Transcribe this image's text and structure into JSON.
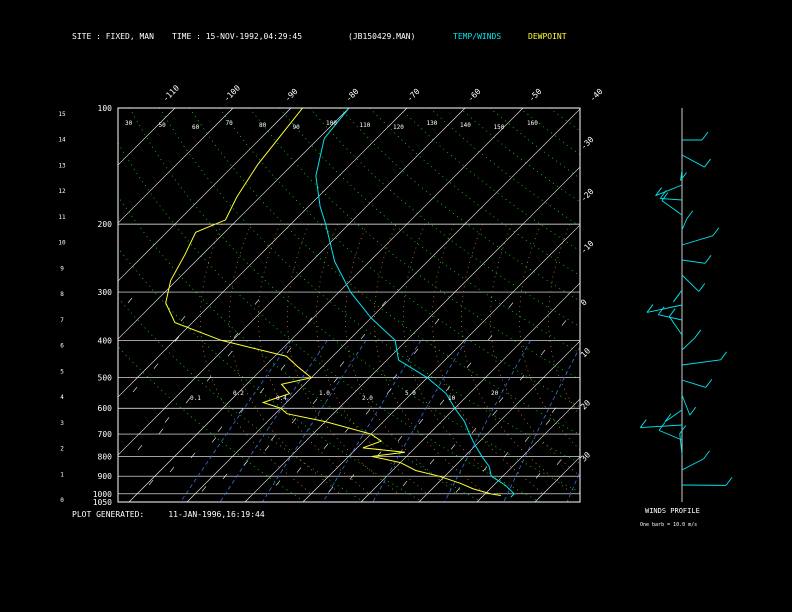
{
  "header": {
    "site_label": "SITE :",
    "site_value": "FIXED, MAN",
    "time_label": "TIME :",
    "time_value": "15-NOV-1992,04:29:45",
    "file": "(JB150429.MAN)",
    "legend_temp": "TEMP/WINDS",
    "legend_dew": "DEWPOINT"
  },
  "footer": {
    "generated_label": "PLOT GENERATED:",
    "generated_value": "11-JAN-1996,16:19:44",
    "winds_title": "WINDS PROFILE",
    "winds_note": "One barb = 10.0 m/s"
  },
  "colors": {
    "background": "#000000",
    "temp": "#00e5ee",
    "dewpoint": "#ffff33",
    "isotherm": "#ffffff",
    "isobar": "#ffffff",
    "dry_adiabat": "#00ff00",
    "moist_adiabat": "#d98c3a",
    "mixing_ratio": "#3a6ed9"
  },
  "chart_data": {
    "type": "line",
    "title": "",
    "pressure_ticks": [
      "100",
      "200",
      "300",
      "400",
      "500",
      "600",
      "700",
      "800",
      "900",
      "1000",
      "1050"
    ],
    "height_ticks": [
      "15",
      "14",
      "13",
      "12",
      "11",
      "10",
      "9",
      "8",
      "7",
      "6",
      "5",
      "4",
      "3",
      "2",
      "1",
      "0"
    ],
    "top_temp_ticks": [
      "-110",
      "-100",
      "-90",
      "-80",
      "-70",
      "-60",
      "-50",
      "-40"
    ],
    "right_temp_ticks": [
      "-30",
      "-20",
      "-10",
      "0",
      "10",
      "20",
      "30"
    ],
    "theta_labels": [
      "30",
      "50",
      "60",
      "70",
      "80",
      "90",
      "100",
      "110",
      "120",
      "130",
      "140",
      "150",
      "160"
    ],
    "mixing_labels": [
      "0.1",
      "0.2",
      "0.4",
      "1.0",
      "2.0",
      "5.0",
      "10",
      "20"
    ],
    "series": [
      {
        "name": "TEMP/WINDS",
        "points": [
          [
            100,
            -80
          ],
          [
            120,
            -79
          ],
          [
            150,
            -74
          ],
          [
            180,
            -68
          ],
          [
            200,
            -64
          ],
          [
            250,
            -56
          ],
          [
            300,
            -48
          ],
          [
            350,
            -40
          ],
          [
            400,
            -32
          ],
          [
            450,
            -28
          ],
          [
            500,
            -20
          ],
          [
            550,
            -14
          ],
          [
            600,
            -10
          ],
          [
            650,
            -6
          ],
          [
            700,
            -3
          ],
          [
            750,
            0
          ],
          [
            800,
            3
          ],
          [
            850,
            6
          ],
          [
            900,
            8
          ],
          [
            950,
            12
          ],
          [
            1000,
            15
          ],
          [
            1020,
            15
          ]
        ]
      },
      {
        "name": "DEWPOINT",
        "points": [
          [
            100,
            -88
          ],
          [
            140,
            -86
          ],
          [
            170,
            -84
          ],
          [
            195,
            -82
          ],
          [
            210,
            -85
          ],
          [
            240,
            -83
          ],
          [
            280,
            -81
          ],
          [
            320,
            -78
          ],
          [
            360,
            -73
          ],
          [
            400,
            -62
          ],
          [
            440,
            -48
          ],
          [
            470,
            -44
          ],
          [
            500,
            -40
          ],
          [
            520,
            -44
          ],
          [
            550,
            -41
          ],
          [
            580,
            -44
          ],
          [
            600,
            -40
          ],
          [
            620,
            -38
          ],
          [
            650,
            -30
          ],
          [
            700,
            -20
          ],
          [
            730,
            -17
          ],
          [
            760,
            -19
          ],
          [
            780,
            -11
          ],
          [
            800,
            -16
          ],
          [
            830,
            -10
          ],
          [
            870,
            -6
          ],
          [
            900,
            -1
          ],
          [
            940,
            4
          ],
          [
            970,
            7
          ],
          [
            1000,
            11
          ],
          [
            1010,
            13
          ]
        ]
      }
    ],
    "wind_barbs_count": 24
  }
}
